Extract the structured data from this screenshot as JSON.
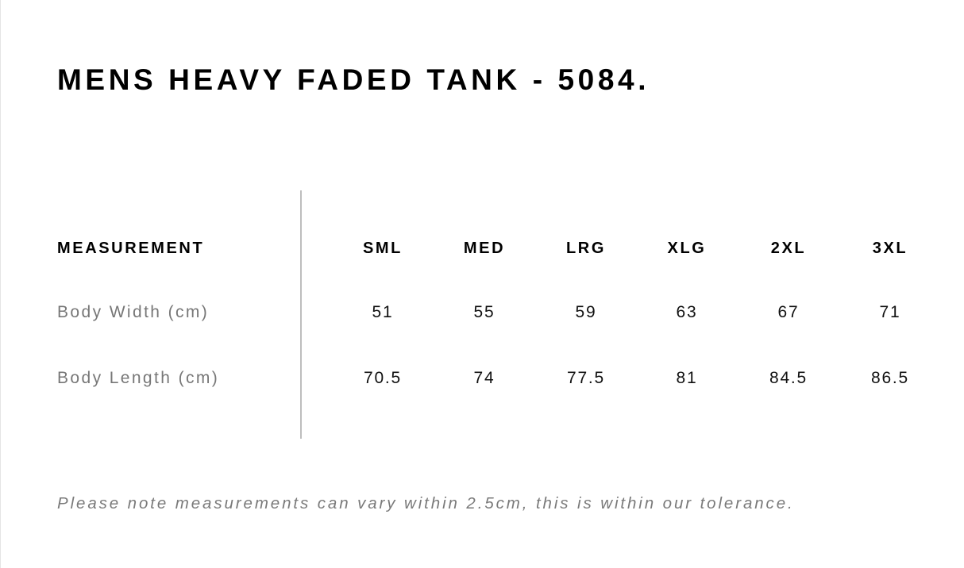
{
  "title": "MENS HEAVY FADED TANK - 5084.",
  "table": {
    "header_label": "MEASUREMENT",
    "sizes": [
      "SML",
      "MED",
      "LRG",
      "XLG",
      "2XL",
      "3XL"
    ],
    "rows": [
      {
        "label": "Body Width (cm)",
        "values": [
          "51",
          "55",
          "59",
          "63",
          "67",
          "71"
        ]
      },
      {
        "label": "Body Length (cm)",
        "values": [
          "70.5",
          "74",
          "77.5",
          "81",
          "84.5",
          "86.5"
        ]
      }
    ]
  },
  "note": "Please note measurements can vary within 2.5cm, this is within our tolerance."
}
